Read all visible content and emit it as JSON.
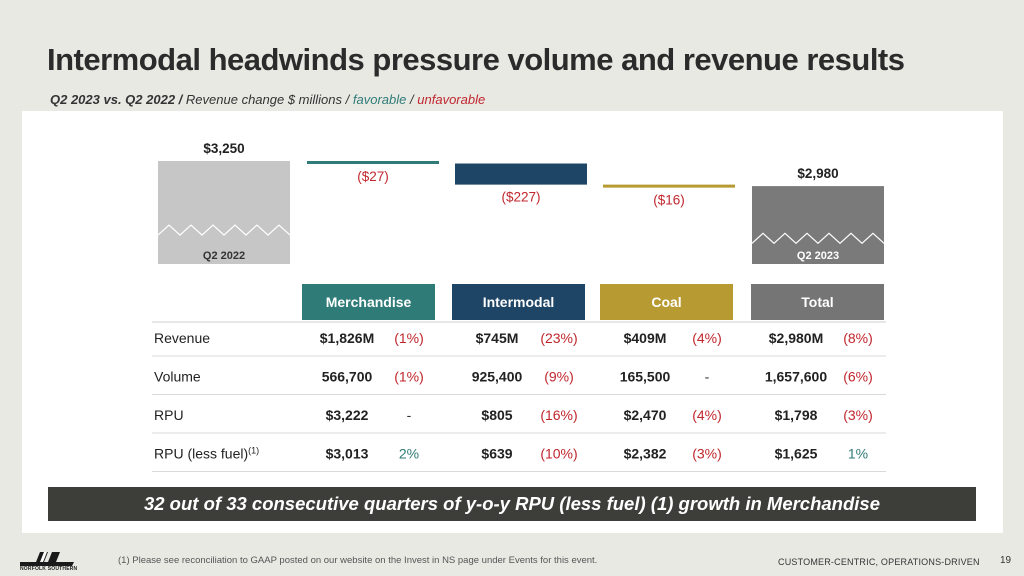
{
  "title": "Intermodal headwinds pressure volume and revenue results",
  "subtitle": {
    "period": "Q2 2023 vs. Q2 2022",
    "sep1": "/",
    "desc": "Revenue change $ millions",
    "sep2": "/",
    "favorable": "favorable",
    "sep3": "/",
    "unfavorable": "unfavorable"
  },
  "colors": {
    "favorable": "#2f7b77",
    "unfavorable": "#c0262d",
    "merchandise": "#2f7b77",
    "intermodal": "#1e4566",
    "coal": "#b89a33",
    "total": "#757575",
    "start_bar": "#c6c6c6",
    "end_bar": "#7a7a7a"
  },
  "chart_data": {
    "type": "bar",
    "subtype": "waterfall",
    "categories": [
      "Q2 2022",
      "Merchandise",
      "Intermodal",
      "Coal",
      "Q2 2023"
    ],
    "values": [
      3250,
      -27,
      -227,
      -16,
      2980
    ],
    "value_labels": [
      "$3,250",
      "($27)",
      "($227)",
      "($16)",
      "$2,980"
    ],
    "axis_break": true,
    "ylabel": "Revenue change $ millions"
  },
  "table": {
    "segments": [
      "Merchandise",
      "Intermodal",
      "Coal",
      "Total"
    ],
    "rows": [
      {
        "label": "Revenue",
        "sup": "",
        "cells": [
          {
            "value": "$1,826M",
            "change": "(1%)",
            "status": "unfavorable"
          },
          {
            "value": "$745M",
            "change": "(23%)",
            "status": "unfavorable"
          },
          {
            "value": "$409M",
            "change": "(4%)",
            "status": "unfavorable"
          },
          {
            "value": "$2,980M",
            "change": "(8%)",
            "status": "unfavorable"
          }
        ]
      },
      {
        "label": "Volume",
        "sup": "",
        "cells": [
          {
            "value": "566,700",
            "change": "(1%)",
            "status": "unfavorable"
          },
          {
            "value": "925,400",
            "change": "(9%)",
            "status": "unfavorable"
          },
          {
            "value": "165,500",
            "change": "-",
            "status": "neutral"
          },
          {
            "value": "1,657,600",
            "change": "(6%)",
            "status": "unfavorable"
          }
        ]
      },
      {
        "label": "RPU",
        "sup": "",
        "cells": [
          {
            "value": "$3,222",
            "change": "-",
            "status": "neutral"
          },
          {
            "value": "$805",
            "change": "(16%)",
            "status": "unfavorable"
          },
          {
            "value": "$2,470",
            "change": "(4%)",
            "status": "unfavorable"
          },
          {
            "value": "$1,798",
            "change": "(3%)",
            "status": "unfavorable"
          }
        ]
      },
      {
        "label": "RPU (less fuel)",
        "sup": "(1)",
        "cells": [
          {
            "value": "$3,013",
            "change": "2%",
            "status": "favorable"
          },
          {
            "value": "$639",
            "change": "(10%)",
            "status": "unfavorable"
          },
          {
            "value": "$2,382",
            "change": "(3%)",
            "status": "unfavorable"
          },
          {
            "value": "$1,625",
            "change": "1%",
            "status": "favorable"
          }
        ]
      }
    ]
  },
  "callout": "32 out of 33 consecutive quarters of y-o-y RPU (less fuel) (1) growth in Merchandise",
  "footnote": "(1) Please see reconciliation to GAAP posted on our website on the Invest in NS page under Events for this event.",
  "tagline": "CUSTOMER-CENTRIC, OPERATIONS-DRIVEN",
  "page_number": "19",
  "logo": {
    "icon": "norfolk-southern-logo-icon",
    "text": "NORFOLK SOUTHERN"
  }
}
